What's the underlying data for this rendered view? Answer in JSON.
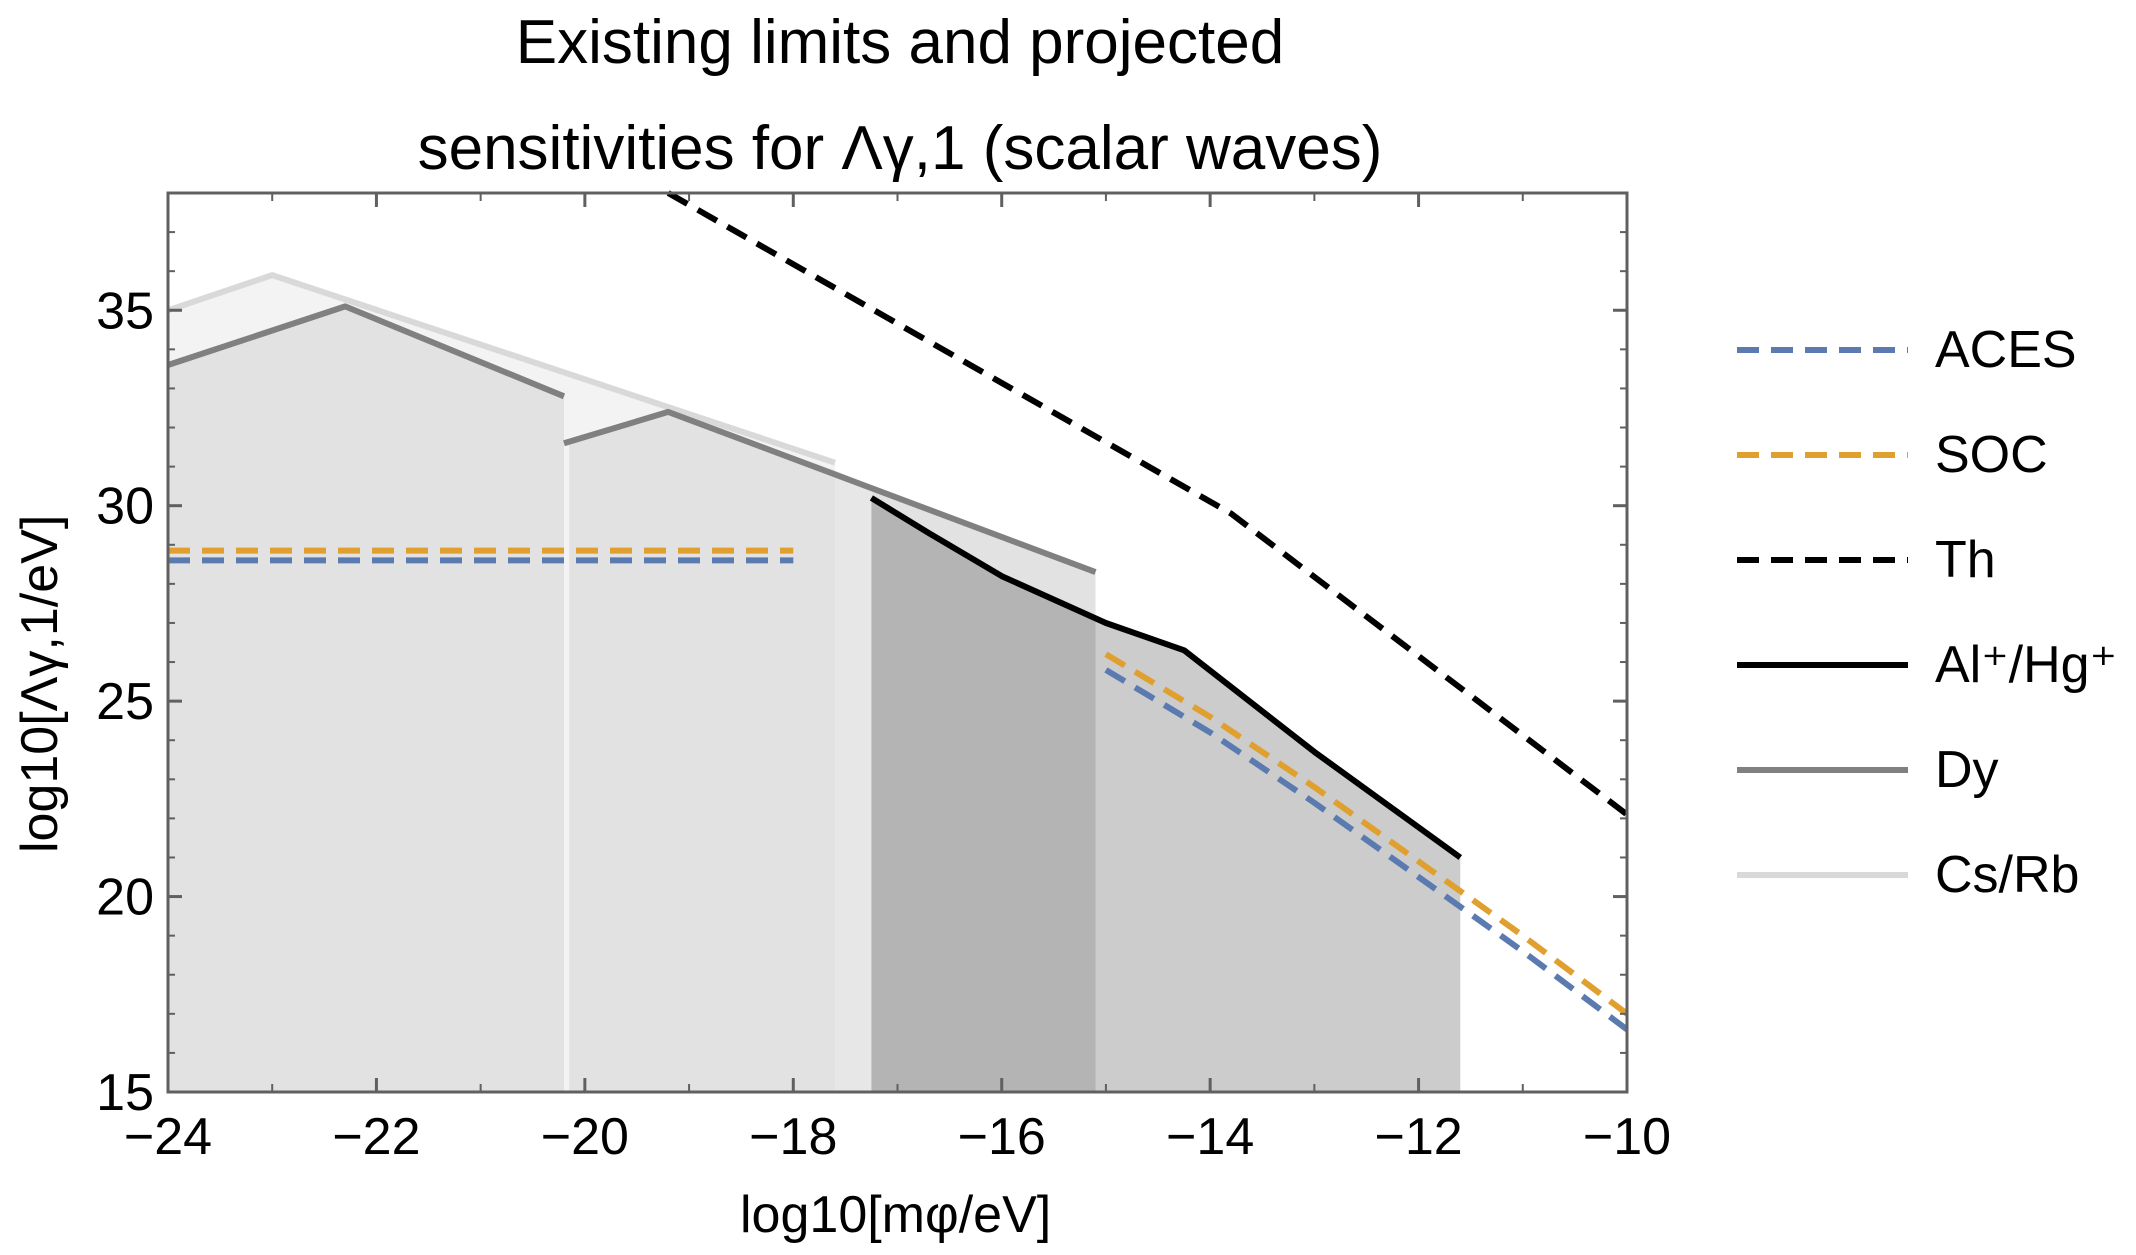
{
  "title": {
    "line1": "Existing limits and projected",
    "line2": "sensitivities for Λγ,1 (scalar waves)"
  },
  "colors": {
    "aces": "#5b7bb0",
    "soc": "#e0a030",
    "th": "#000000",
    "alhg": "#000000",
    "dy": "#808080",
    "csrb": "#d9d9d9"
  },
  "chart_data": {
    "type": "line",
    "title": "Existing limits and projected sensitivities for Λγ,1 (scalar waves)",
    "xlabel": "log10[mφ/eV]",
    "ylabel": "log10[Λγ,1/eV]",
    "xlim": [
      -24,
      -10
    ],
    "ylim": [
      15,
      38
    ],
    "xticks": [
      -24,
      -22,
      -20,
      -18,
      -16,
      -14,
      -12,
      -10
    ],
    "yticks": [
      15,
      20,
      25,
      30,
      35
    ],
    "xtick_labels": [
      "−24",
      "−22",
      "−20",
      "−18",
      "−16",
      "−14",
      "−12",
      "−10"
    ],
    "ytick_labels": [
      "15",
      "20",
      "25",
      "30",
      "35"
    ],
    "grid": false,
    "legend_position": "right",
    "series": [
      {
        "name": "ACES",
        "key": "aces",
        "style": "dashed",
        "segments": [
          [
            [
              -24,
              28.6
            ],
            [
              -18,
              28.6
            ]
          ],
          [
            [
              -15.0,
              25.8
            ],
            [
              -14.0,
              24.2
            ],
            [
              -13.0,
              22.4
            ],
            [
              -12.0,
              20.5
            ],
            [
              -11.0,
              18.6
            ],
            [
              -10.0,
              16.6
            ]
          ]
        ]
      },
      {
        "name": "SOC",
        "key": "soc",
        "style": "dashed",
        "segments": [
          [
            [
              -24,
              28.85
            ],
            [
              -18,
              28.85
            ]
          ],
          [
            [
              -15.0,
              26.2
            ],
            [
              -14.0,
              24.6
            ],
            [
              -13.0,
              22.8
            ],
            [
              -12.0,
              20.9
            ],
            [
              -11.0,
              19.0
            ],
            [
              -10.0,
              17.0
            ]
          ]
        ]
      },
      {
        "name": "Th",
        "key": "th",
        "style": "dashed",
        "segments": [
          [
            [
              -19.2,
              38.0
            ],
            [
              -13.8,
              29.8
            ],
            [
              -10.0,
              22.1
            ]
          ]
        ]
      },
      {
        "name": "Al⁺/Hg⁺",
        "key": "alhg",
        "style": "solid",
        "segments": [
          [
            [
              -17.25,
              30.2
            ],
            [
              -16.7,
              29.3
            ],
            [
              -16.0,
              28.2
            ],
            [
              -15.0,
              27.0
            ],
            [
              -14.25,
              26.3
            ],
            [
              -13.0,
              23.7
            ],
            [
              -11.6,
              21.0
            ]
          ]
        ]
      },
      {
        "name": "Dy",
        "key": "dy",
        "style": "solid",
        "segments": [
          [
            [
              -24,
              33.6
            ],
            [
              -22.3,
              35.1
            ],
            [
              -20.2,
              32.8
            ]
          ],
          [
            [
              -20.2,
              31.6
            ],
            [
              -19.2,
              32.4
            ],
            [
              -15.1,
              28.3
            ]
          ]
        ]
      },
      {
        "name": "Cs/Rb",
        "key": "csrb",
        "style": "solid",
        "segments": [
          [
            [
              -24,
              35.0
            ],
            [
              -23.0,
              35.9
            ],
            [
              -17.6,
              31.1
            ]
          ]
        ]
      }
    ],
    "excluded_regions": [
      {
        "fill": "#f3f3f3",
        "points": [
          [
            -24,
            35.0
          ],
          [
            -23.0,
            35.9
          ],
          [
            -20.2,
            33.4
          ],
          [
            -20.2,
            15
          ],
          [
            -24,
            15
          ]
        ]
      },
      {
        "fill": "#f3f3f3",
        "points": [
          [
            -20.2,
            33.4
          ],
          [
            -17.6,
            31.1
          ],
          [
            -17.6,
            15
          ],
          [
            -20.2,
            15
          ]
        ]
      },
      {
        "fill": "#e2e2e2",
        "points": [
          [
            -24,
            33.6
          ],
          [
            -22.3,
            35.1
          ],
          [
            -20.2,
            32.8
          ],
          [
            -20.2,
            15
          ],
          [
            -24,
            15
          ]
        ]
      },
      {
        "fill": "#e2e2e2",
        "points": [
          [
            -20.15,
            31.6
          ],
          [
            -19.2,
            32.4
          ],
          [
            -17.6,
            30.9
          ],
          [
            -17.6,
            15
          ],
          [
            -20.15,
            15
          ]
        ]
      },
      {
        "fill": "#e7e7e7",
        "points": [
          [
            -17.6,
            30.9
          ],
          [
            -17.25,
            30.5
          ],
          [
            -17.25,
            15
          ],
          [
            -17.6,
            15
          ]
        ]
      },
      {
        "fill": "#b4b4b4",
        "points": [
          [
            -17.25,
            30.2
          ],
          [
            -16.7,
            29.3
          ],
          [
            -16.0,
            28.2
          ],
          [
            -15.1,
            27.1
          ],
          [
            -15.1,
            15
          ],
          [
            -17.25,
            15
          ]
        ]
      },
      {
        "fill": "#cccccc",
        "points": [
          [
            -15.1,
            27.1
          ],
          [
            -14.25,
            26.3
          ],
          [
            -13.0,
            23.7
          ],
          [
            -11.6,
            21.0
          ],
          [
            -11.6,
            15
          ],
          [
            -15.1,
            15
          ]
        ]
      },
      {
        "fill": "#e2e2e2",
        "points": [
          [
            -17.25,
            30.5
          ],
          [
            -15.1,
            28.3
          ],
          [
            -15.1,
            27.1
          ],
          [
            -16.0,
            28.2
          ],
          [
            -16.7,
            29.3
          ],
          [
            -17.25,
            30.2
          ]
        ]
      }
    ]
  }
}
